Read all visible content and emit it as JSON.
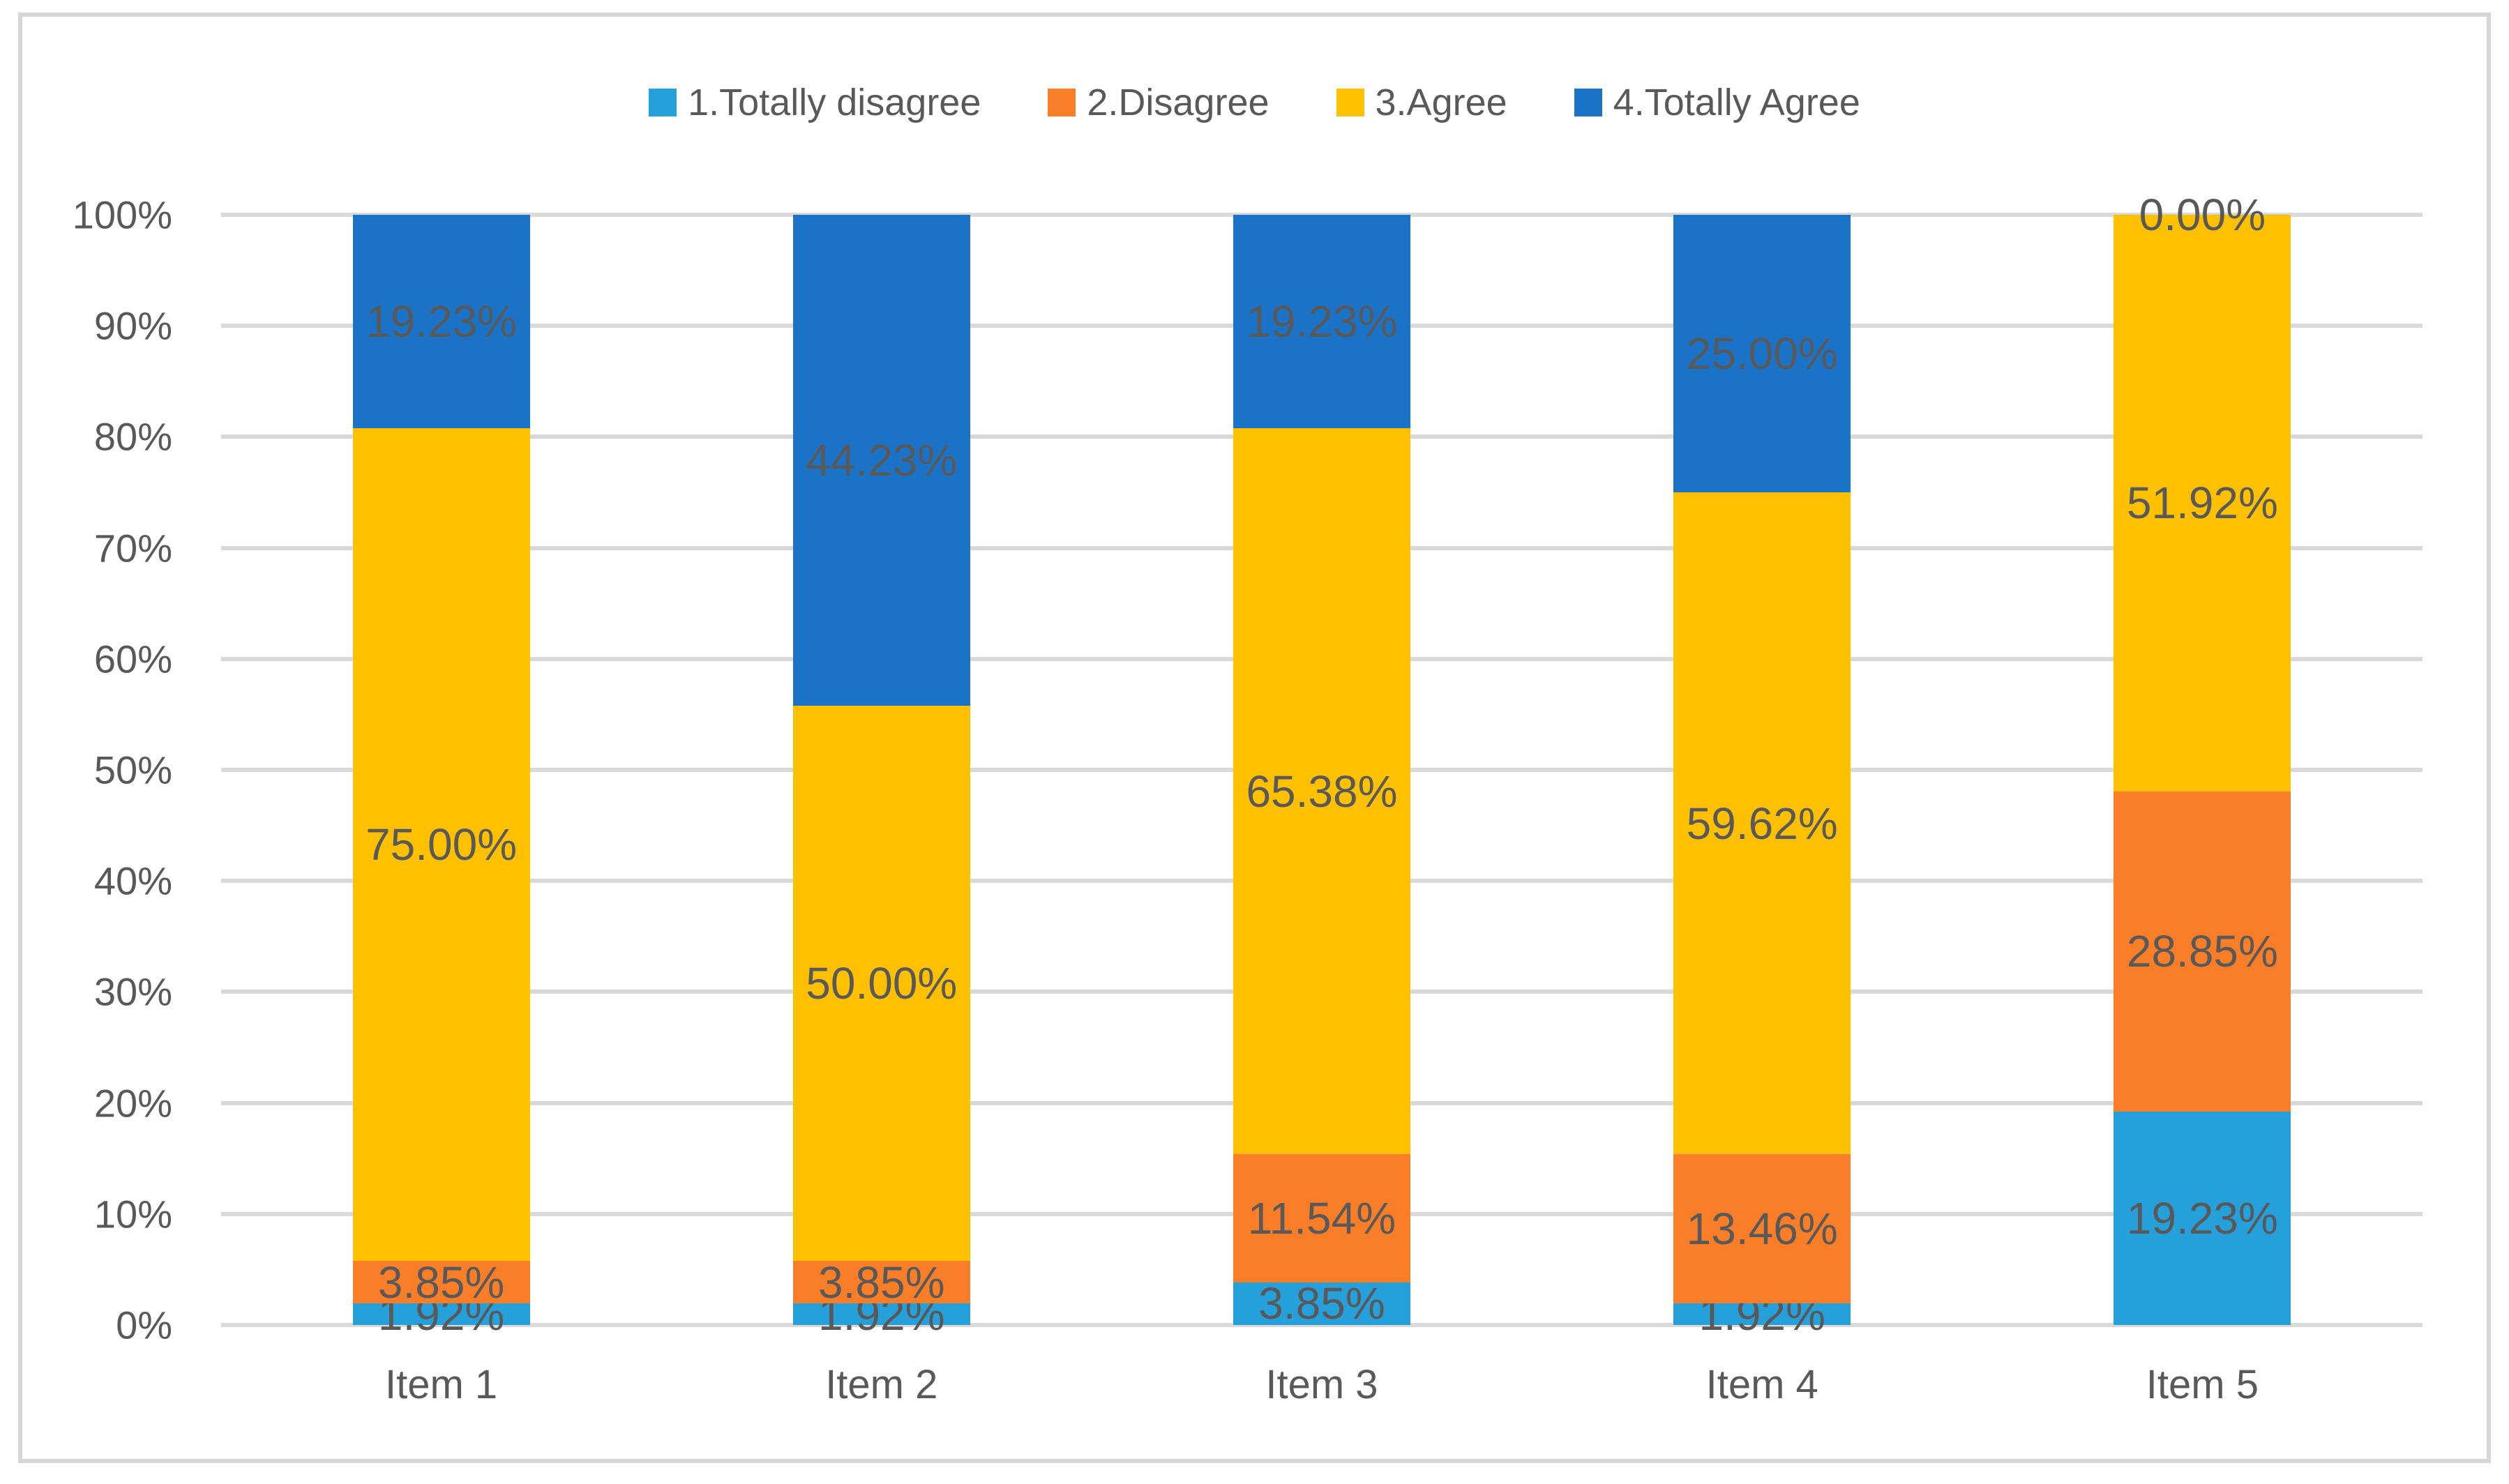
{
  "figure": {
    "background_color": "#FFFFFF",
    "border_color": "#D6D6D6",
    "gridline_color": "#D9D9D9",
    "text_color": "#595959",
    "data_label_color": "#595959"
  },
  "chart_data": {
    "type": "bar",
    "subtype": "stacked-100",
    "orientation": "vertical",
    "title": "",
    "xlabel": "",
    "ylabel": "",
    "grid": true,
    "legend_position": "top",
    "data_labels_position": "center",
    "categories": [
      "Item 1",
      "Item 2",
      "Item 3",
      "Item 4",
      "Item 5"
    ],
    "series": [
      {
        "name": "1.Totally disagree",
        "color": "#26A0DA",
        "values": [
          1.92,
          1.92,
          3.85,
          1.92,
          19.23
        ],
        "labels": [
          "1.92%",
          "1.92%",
          "3.85%",
          "1.92%",
          "19.23%"
        ]
      },
      {
        "name": "2.Disagree",
        "color": "#F97E27",
        "values": [
          3.85,
          3.85,
          11.54,
          13.46,
          28.85
        ],
        "labels": [
          "3.85%",
          "3.85%",
          "11.54%",
          "13.46%",
          "28.85%"
        ]
      },
      {
        "name": "3.Agree",
        "color": "#FFC000",
        "values": [
          75.0,
          50.0,
          65.38,
          59.62,
          51.92
        ],
        "labels": [
          "75.00%",
          "50.00%",
          "65.38%",
          "59.62%",
          "51.92%"
        ]
      },
      {
        "name": "4.Totally Agree",
        "color": "#1B73C8",
        "values": [
          19.23,
          44.23,
          19.23,
          25.0,
          0.0
        ],
        "labels": [
          "19.23%",
          "44.23%",
          "19.23%",
          "25.00%",
          "0.00%"
        ]
      }
    ],
    "y_axis": {
      "min": 0,
      "max": 100,
      "step": 10,
      "ticks": [
        "0%",
        "10%",
        "20%",
        "30%",
        "40%",
        "50%",
        "60%",
        "70%",
        "80%",
        "90%",
        "100%"
      ]
    },
    "ylim": [
      0,
      100
    ]
  }
}
